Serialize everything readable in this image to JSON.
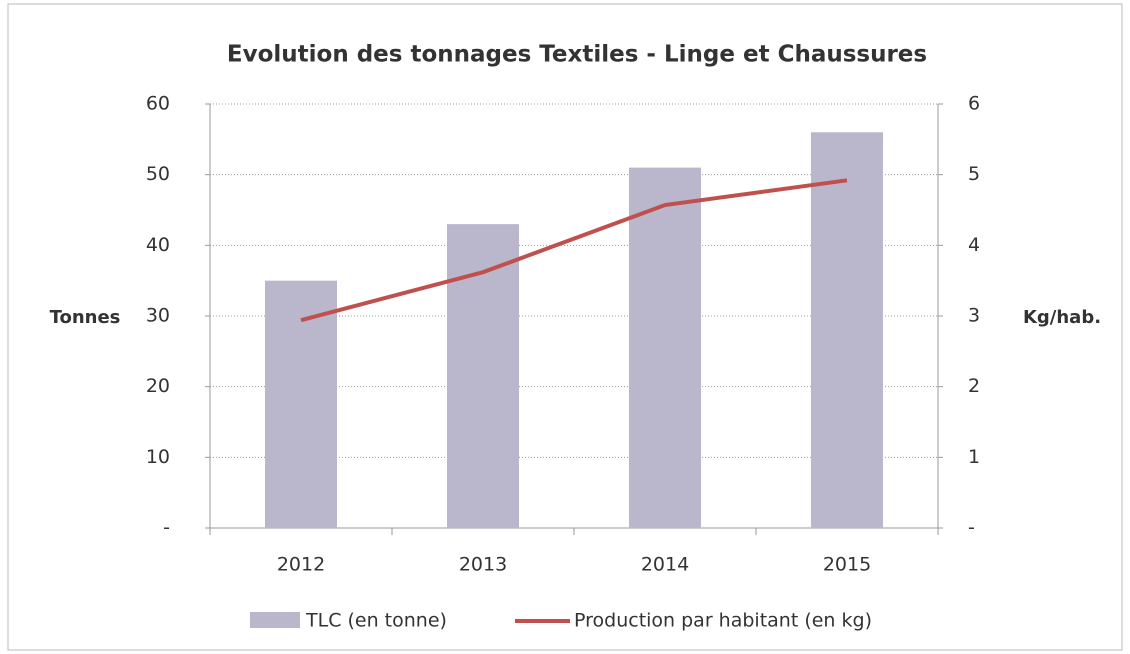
{
  "chart_data": {
    "type": "bar",
    "title": "Evolution des tonnages Textiles - Linge et Chaussures",
    "y_label": "Tonnes",
    "y2_label": "Kg/hab.",
    "categories": [
      "2012",
      "2013",
      "2014",
      "2015"
    ],
    "series": [
      {
        "name": "TLC (en tonne)",
        "type": "bar",
        "color": "#bab6cc",
        "values": [
          35,
          43,
          51,
          56
        ]
      },
      {
        "name": "Production par habitant (en kg)",
        "type": "line",
        "axis": "y2",
        "color": "#c0504d",
        "values": [
          2.94,
          3.62,
          4.57,
          4.92
        ]
      }
    ],
    "ylim": [
      0,
      60
    ],
    "yticks": [
      {
        "value": 0,
        "label": "-"
      },
      10,
      20,
      30,
      40,
      50,
      60
    ],
    "y2lim": [
      0,
      6
    ],
    "y2ticks": [
      {
        "value": 0,
        "label": "-"
      },
      1,
      2,
      3,
      4,
      5,
      6
    ],
    "grid": true,
    "legend": "bottom"
  }
}
